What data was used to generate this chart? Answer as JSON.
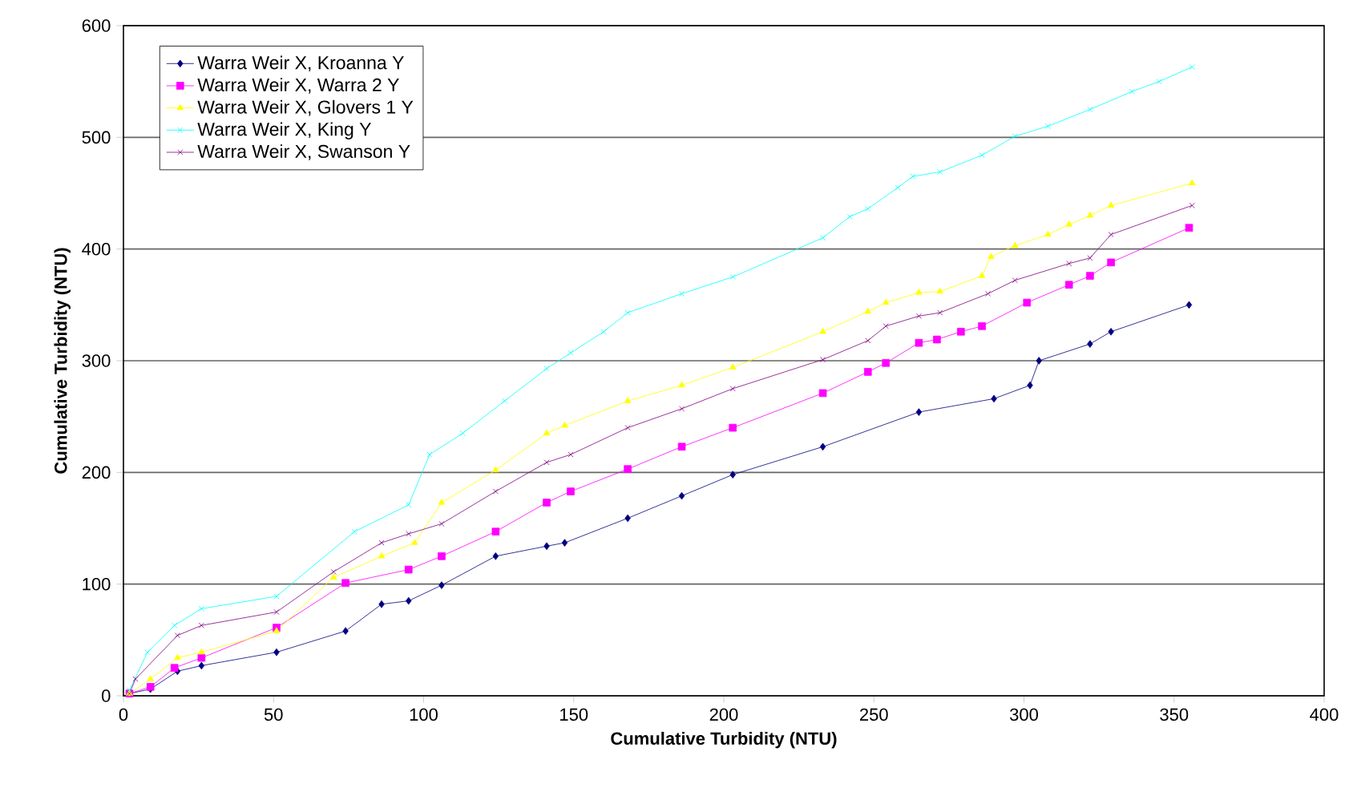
{
  "chart_data": {
    "type": "line",
    "xlabel": "Cumulative Turbidity (NTU)",
    "ylabel": "Cumulative Turbidity (NTU)",
    "xlim": [
      0,
      400
    ],
    "ylim": [
      0,
      600
    ],
    "xticks": [
      0,
      50,
      100,
      150,
      200,
      250,
      300,
      350,
      400
    ],
    "yticks": [
      0,
      100,
      200,
      300,
      400,
      500,
      600
    ],
    "grid": "y",
    "legend": "top left",
    "line_style": "solid",
    "series": [
      {
        "name": "Warra Weir X, Kroanna Y",
        "color": "#000080",
        "marker": "diamond",
        "x": [
          2,
          9,
          18,
          26,
          51,
          74,
          86,
          95,
          106,
          124,
          141,
          147,
          168,
          186,
          203,
          233,
          265,
          290,
          302,
          305,
          322,
          329,
          355
        ],
        "values": [
          2,
          6,
          22,
          27,
          39,
          58,
          82,
          85,
          99,
          125,
          134,
          137,
          159,
          179,
          198,
          223,
          254,
          266,
          278,
          300,
          315,
          326,
          350
        ]
      },
      {
        "name": "Warra Weir X, Warra 2 Y",
        "color": "#ff00ff",
        "marker": "square",
        "x": [
          2,
          9,
          17,
          26,
          51,
          74,
          95,
          106,
          124,
          141,
          149,
          168,
          186,
          203,
          233,
          248,
          254,
          265,
          271,
          279,
          286,
          301,
          315,
          322,
          329,
          355
        ],
        "values": [
          2,
          8,
          25,
          34,
          61,
          101,
          113,
          125,
          147,
          173,
          183,
          203,
          223,
          240,
          271,
          290,
          298,
          316,
          319,
          326,
          331,
          352,
          368,
          376,
          388,
          419
        ]
      },
      {
        "name": "Warra Weir X, Glovers 1 Y",
        "color": "#ffff00",
        "marker": "triangle",
        "x": [
          2,
          9,
          18,
          26,
          51,
          70,
          86,
          97,
          106,
          124,
          141,
          147,
          168,
          186,
          203,
          233,
          248,
          254,
          265,
          272,
          286,
          289,
          297,
          308,
          315,
          322,
          329,
          356
        ],
        "values": [
          2,
          15,
          34,
          39,
          58,
          106,
          125,
          137,
          173,
          202,
          235,
          242,
          264,
          278,
          294,
          326,
          344,
          352,
          361,
          362,
          376,
          393,
          403,
          413,
          422,
          430,
          439,
          459
        ]
      },
      {
        "name": "Warra Weir X, King Y",
        "color": "#00ffff",
        "marker": "cross",
        "x": [
          2,
          8,
          17,
          26,
          51,
          77,
          95,
          102,
          113,
          127,
          141,
          149,
          160,
          168,
          186,
          203,
          233,
          242,
          248,
          258,
          263,
          272,
          286,
          297,
          308,
          322,
          336,
          345,
          356
        ],
        "values": [
          5,
          39,
          63,
          78,
          89,
          147,
          171,
          216,
          235,
          264,
          293,
          307,
          326,
          343,
          360,
          375,
          410,
          429,
          436,
          455,
          465,
          469,
          484,
          501,
          510,
          525,
          541,
          550,
          563
        ]
      },
      {
        "name": "Warra Weir X, Swanson Y",
        "color": "#800080",
        "marker": "cross",
        "x": [
          2,
          4,
          18,
          26,
          51,
          70,
          86,
          95,
          106,
          124,
          141,
          149,
          168,
          186,
          203,
          233,
          248,
          254,
          265,
          272,
          288,
          297,
          315,
          322,
          329,
          356
        ],
        "values": [
          2,
          15,
          54,
          63,
          75,
          111,
          137,
          145,
          154,
          183,
          209,
          216,
          240,
          257,
          275,
          301,
          318,
          331,
          340,
          343,
          360,
          372,
          387,
          392,
          413,
          439
        ]
      }
    ]
  }
}
